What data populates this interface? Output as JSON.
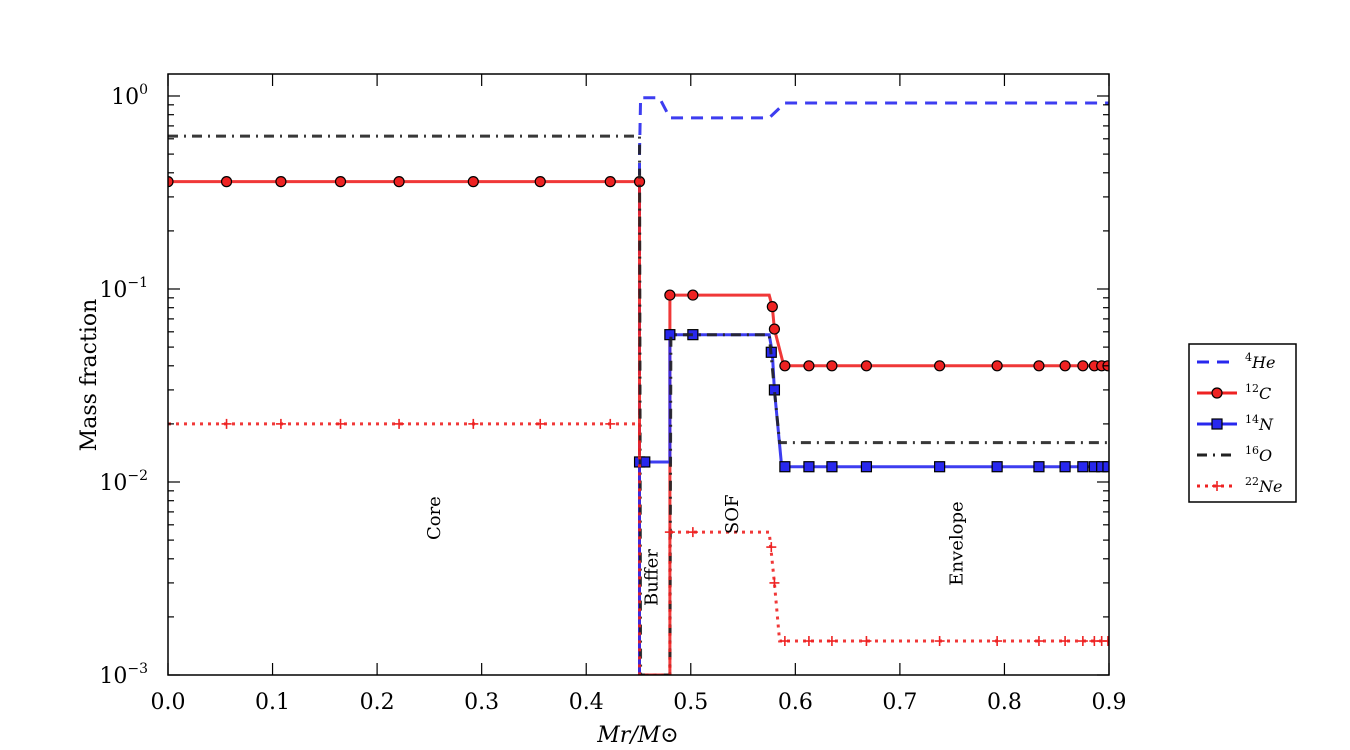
{
  "chart_data": {
    "type": "line",
    "title": "",
    "xlabel": "Mr/M⊙",
    "ylabel": "Mass fraction",
    "xlim": [
      0.0,
      0.9
    ],
    "ylim": [
      0.001,
      1.3
    ],
    "yscale": "log",
    "grid": false,
    "legend_position": "outside-right",
    "x_ticks": [
      "0.0",
      "0.1",
      "0.2",
      "0.3",
      "0.4",
      "0.5",
      "0.6",
      "0.7",
      "0.8",
      "0.9"
    ],
    "y_ticks": [
      {
        "value": 1,
        "base": "10",
        "exp": "0"
      },
      {
        "value": 0.1,
        "base": "10",
        "exp": "−1"
      },
      {
        "value": 0.01,
        "base": "10",
        "exp": "−2"
      },
      {
        "value": 0.001,
        "base": "10",
        "exp": "−3"
      }
    ],
    "region_labels": [
      {
        "text": "Core",
        "x": 0.26,
        "y": 0.0065
      },
      {
        "text": "Buffer",
        "x": 0.468,
        "y": 0.0032
      },
      {
        "text": "SOF",
        "x": 0.545,
        "y": 0.0068
      },
      {
        "text": "Envelope",
        "x": 0.76,
        "y": 0.0048
      }
    ],
    "series": [
      {
        "name": "4He",
        "iso": "4",
        "elem": "He",
        "color": "#2828ee",
        "dash": "12,8",
        "marker": "none",
        "points": [
          [
            0.451,
            0.001
          ],
          [
            0.451,
            0.5
          ],
          [
            0.452,
            0.98
          ],
          [
            0.47,
            0.98
          ],
          [
            0.48,
            0.77
          ],
          [
            0.575,
            0.77
          ],
          [
            0.59,
            0.92
          ],
          [
            0.9,
            0.92
          ]
        ]
      },
      {
        "name": "12C",
        "iso": "12",
        "elem": "C",
        "color": "#ee2222",
        "dash": "",
        "marker": "circle",
        "points": [
          [
            0.0,
            0.36
          ],
          [
            0.451,
            0.36
          ],
          [
            0.451,
            0.001
          ],
          [
            0.48,
            0.001
          ],
          [
            0.48,
            0.093
          ],
          [
            0.575,
            0.093
          ],
          [
            0.578,
            0.081
          ],
          [
            0.58,
            0.062
          ],
          [
            0.589,
            0.04
          ],
          [
            0.9,
            0.04
          ]
        ],
        "markers": [
          [
            0.0,
            0.36
          ],
          [
            0.056,
            0.36
          ],
          [
            0.108,
            0.36
          ],
          [
            0.165,
            0.36
          ],
          [
            0.221,
            0.36
          ],
          [
            0.292,
            0.36
          ],
          [
            0.356,
            0.36
          ],
          [
            0.423,
            0.36
          ],
          [
            0.451,
            0.36
          ],
          [
            0.48,
            0.093
          ],
          [
            0.502,
            0.093
          ],
          [
            0.578,
            0.081
          ],
          [
            0.58,
            0.062
          ],
          [
            0.59,
            0.04
          ],
          [
            0.613,
            0.04
          ],
          [
            0.635,
            0.04
          ],
          [
            0.668,
            0.04
          ],
          [
            0.738,
            0.04
          ],
          [
            0.793,
            0.04
          ],
          [
            0.833,
            0.04
          ],
          [
            0.858,
            0.04
          ],
          [
            0.875,
            0.04
          ],
          [
            0.886,
            0.04
          ],
          [
            0.893,
            0.04
          ],
          [
            0.899,
            0.04
          ]
        ]
      },
      {
        "name": "14N",
        "iso": "14",
        "elem": "N",
        "color": "#2828ee",
        "dash": "",
        "marker": "square",
        "points": [
          [
            0.451,
            0.001
          ],
          [
            0.451,
            0.0127
          ],
          [
            0.48,
            0.0127
          ],
          [
            0.48,
            0.058
          ],
          [
            0.575,
            0.058
          ],
          [
            0.578,
            0.047
          ],
          [
            0.58,
            0.03
          ],
          [
            0.587,
            0.012
          ],
          [
            0.9,
            0.012
          ]
        ],
        "markers": [
          [
            0.451,
            0.0127
          ],
          [
            0.456,
            0.0127
          ],
          [
            0.48,
            0.058
          ],
          [
            0.502,
            0.058
          ],
          [
            0.577,
            0.047
          ],
          [
            0.58,
            0.03
          ],
          [
            0.59,
            0.012
          ],
          [
            0.613,
            0.012
          ],
          [
            0.635,
            0.012
          ],
          [
            0.668,
            0.012
          ],
          [
            0.738,
            0.012
          ],
          [
            0.793,
            0.012
          ],
          [
            0.833,
            0.012
          ],
          [
            0.858,
            0.012
          ],
          [
            0.875,
            0.012
          ],
          [
            0.886,
            0.012
          ],
          [
            0.893,
            0.012
          ],
          [
            0.899,
            0.012
          ]
        ]
      },
      {
        "name": "16O",
        "iso": "16",
        "elem": "O",
        "color": "#222222",
        "dash": "10,6,2,6",
        "marker": "none",
        "points": [
          [
            0.0,
            0.62
          ],
          [
            0.451,
            0.62
          ],
          [
            0.452,
            0.001
          ],
          [
            0.48,
            0.001
          ],
          [
            0.481,
            0.058
          ],
          [
            0.575,
            0.058
          ],
          [
            0.58,
            0.03
          ],
          [
            0.585,
            0.016
          ],
          [
            0.9,
            0.016
          ]
        ]
      },
      {
        "name": "22Ne",
        "iso": "22",
        "elem": "Ne",
        "color": "#ee2222",
        "dash": "3,5",
        "marker": "plus",
        "points": [
          [
            0.0,
            0.02
          ],
          [
            0.451,
            0.02
          ],
          [
            0.451,
            0.001
          ],
          [
            0.48,
            0.001
          ],
          [
            0.48,
            0.0055
          ],
          [
            0.575,
            0.0055
          ],
          [
            0.58,
            0.003
          ],
          [
            0.585,
            0.0015
          ],
          [
            0.9,
            0.0015
          ]
        ],
        "markers": [
          [
            0.056,
            0.02
          ],
          [
            0.108,
            0.02
          ],
          [
            0.165,
            0.02
          ],
          [
            0.221,
            0.02
          ],
          [
            0.292,
            0.02
          ],
          [
            0.356,
            0.02
          ],
          [
            0.423,
            0.02
          ],
          [
            0.48,
            0.0055
          ],
          [
            0.502,
            0.0055
          ],
          [
            0.577,
            0.0046
          ],
          [
            0.58,
            0.003
          ],
          [
            0.59,
            0.0015
          ],
          [
            0.613,
            0.0015
          ],
          [
            0.635,
            0.0015
          ],
          [
            0.668,
            0.0015
          ],
          [
            0.738,
            0.0015
          ],
          [
            0.793,
            0.0015
          ],
          [
            0.833,
            0.0015
          ],
          [
            0.858,
            0.0015
          ],
          [
            0.875,
            0.0015
          ],
          [
            0.886,
            0.0015
          ],
          [
            0.893,
            0.0015
          ],
          [
            0.899,
            0.0015
          ]
        ]
      }
    ]
  }
}
